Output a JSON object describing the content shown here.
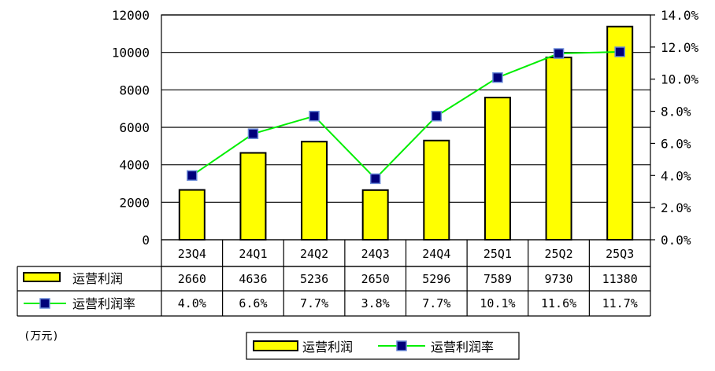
{
  "chart_data": {
    "type": "bar",
    "categories": [
      "23Q4",
      "24Q1",
      "24Q2",
      "24Q3",
      "24Q4",
      "25Q1",
      "25Q2",
      "25Q3"
    ],
    "series": [
      {
        "name": "运营利润",
        "kind": "bar",
        "axis": "left",
        "color": "#ffff00",
        "values": [
          2660,
          4636,
          5236,
          2650,
          5296,
          7589,
          9730,
          11380
        ]
      },
      {
        "name": "运营利润率",
        "kind": "line",
        "axis": "right",
        "color": "#00ee00",
        "marker_color": "#00007a",
        "values": [
          4.0,
          6.6,
          7.7,
          3.8,
          7.7,
          10.1,
          11.6,
          11.7
        ]
      }
    ],
    "table_row_values": {
      "bar": [
        "2660",
        "4636",
        "5236",
        "2650",
        "5296",
        "7589",
        "9730",
        "11380"
      ],
      "line": [
        "4.0%",
        "6.6%",
        "7.7%",
        "3.8%",
        "7.7%",
        "10.1%",
        "11.6%",
        "11.7%"
      ]
    },
    "ylim": [
      0,
      12000
    ],
    "y2lim": [
      0,
      14.0
    ],
    "yticks": [
      "0",
      "2000",
      "4000",
      "6000",
      "8000",
      "10000",
      "12000"
    ],
    "y2ticks": [
      "0.0%",
      "2.0%",
      "4.0%",
      "6.0%",
      "8.0%",
      "10.0%",
      "12.0%",
      "14.0%"
    ],
    "unit_label": "(万元)",
    "legend_position": "bottom-center",
    "grid": true,
    "data_table": true
  }
}
